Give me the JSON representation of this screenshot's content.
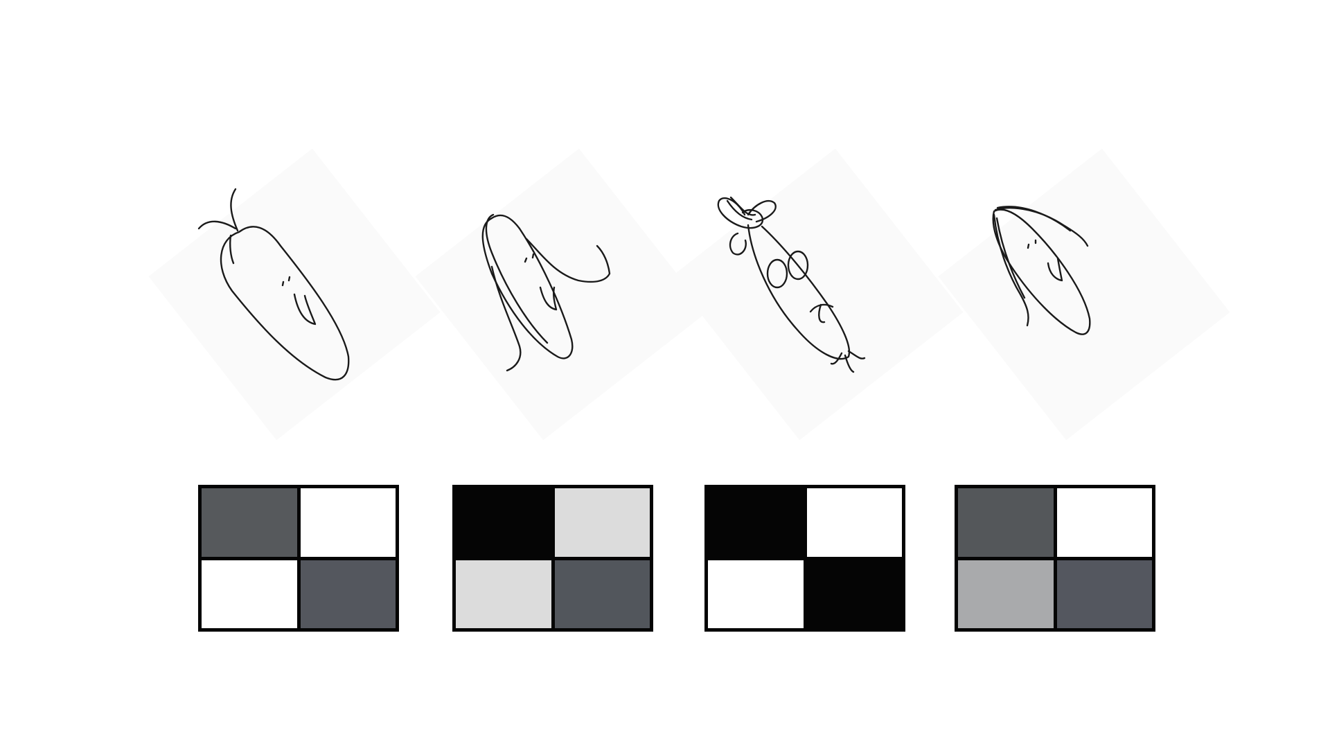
{
  "panels": [
    {
      "sketch_icon": "leaf-creature-sketch-icon",
      "cells": [
        "#56595c",
        "#ffffff",
        "#ffffff",
        "#54575e"
      ]
    },
    {
      "sketch_icon": "winged-creature-sketch-icon",
      "cells": [
        "#050505",
        "#dcdcdc",
        "#dcdcdc",
        "#52565c"
      ]
    },
    {
      "sketch_icon": "bunny-creature-sketch-icon",
      "cells": [
        "#050505",
        "#ffffff",
        "#ffffff",
        "#050505"
      ]
    },
    {
      "sketch_icon": "long-haired-creature-sketch-icon",
      "cells": [
        "#54575a",
        "#ffffff",
        "#a9aaac",
        "#54575f"
      ]
    }
  ]
}
